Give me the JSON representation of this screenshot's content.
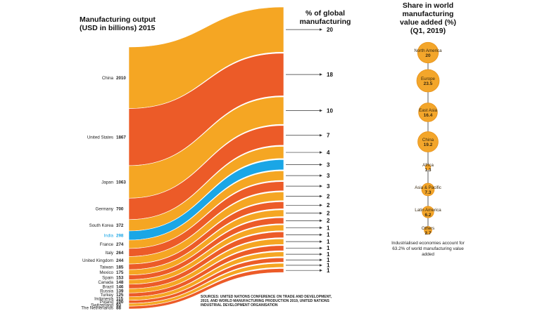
{
  "chart_data": [
    {
      "type": "sankey",
      "title": "Manufacturing output (USD in billions) 2015",
      "right_title": "% of global manufacturing",
      "rows": [
        {
          "country": "China",
          "value": 2010,
          "percent": 20
        },
        {
          "country": "United States",
          "value": 1867,
          "percent": 18
        },
        {
          "country": "Japan",
          "value": 1063,
          "percent": 10
        },
        {
          "country": "Germany",
          "value": 700,
          "percent": 7
        },
        {
          "country": "South Korea",
          "value": 372,
          "percent": 4
        },
        {
          "country": "India",
          "value": 298,
          "percent": 3,
          "highlight": true
        },
        {
          "country": "France",
          "value": 274,
          "percent": 3
        },
        {
          "country": "Italy",
          "value": 264,
          "percent": 3
        },
        {
          "country": "United Kingdom",
          "value": 244,
          "percent": 2
        },
        {
          "country": "Taiwan",
          "value": 185,
          "percent": 2
        },
        {
          "country": "Mexico",
          "value": 175,
          "percent": 2
        },
        {
          "country": "Spain",
          "value": 153,
          "percent": 2
        },
        {
          "country": "Canada",
          "value": 148,
          "percent": 1
        },
        {
          "country": "Brazil",
          "value": 146,
          "percent": 1
        },
        {
          "country": "Russia",
          "value": 139,
          "percent": 1
        },
        {
          "country": "Turkey",
          "value": 125,
          "percent": 1
        },
        {
          "country": "Indonesia",
          "value": 115,
          "percent": 1
        },
        {
          "country": "Poland",
          "value": 100,
          "percent": 1
        },
        {
          "country": "Switzerland",
          "value": 93,
          "percent": 1
        },
        {
          "country": "The Netherlands",
          "value": 88,
          "percent": 1
        }
      ]
    },
    {
      "type": "bubble",
      "title": "Share in world manufacturing value added (%) (Q1, 2019)",
      "regions": [
        {
          "name": "North America",
          "value": "20"
        },
        {
          "name": "Europe",
          "value": "23.5"
        },
        {
          "name": "East Asia",
          "value": "16.4"
        },
        {
          "name": "China",
          "value": "19.2"
        },
        {
          "name": "Africa",
          "value": "1.3"
        },
        {
          "name": "Asia & Pacific",
          "value": "7.3"
        },
        {
          "name": "Latin America",
          "value": "6.2"
        },
        {
          "name": "Others",
          "value": "2.7"
        }
      ]
    }
  ],
  "left_title_lines": [
    "Manufacturing output",
    "(USD in billions) 2015"
  ],
  "mid_title_lines": [
    "% of global",
    "manufacturing"
  ],
  "right_title_lines": [
    "Share in world",
    "manufacturing",
    "value added (%)",
    "(Q1, 2019)"
  ],
  "note": "Industrialised economies account for 63.2% of world manufacturing value added",
  "source": "SOURCES: UNITED NATIONS CONFERENCE ON TRADE AND DEVELOPMENT, 2015, AND WORLD MANUFACTURING PRODUCTION 2019, UNITED NATIONS INDUSTRIAL DEVELOPMENT ORGANISATION",
  "colors": {
    "orange_light": "#f5a623",
    "orange_dark": "#ec5b28",
    "highlight": "#1aa6e6",
    "bubble_fill": "#f3a62b",
    "bubble_stroke": "#e8921a",
    "connector": "#333333"
  }
}
